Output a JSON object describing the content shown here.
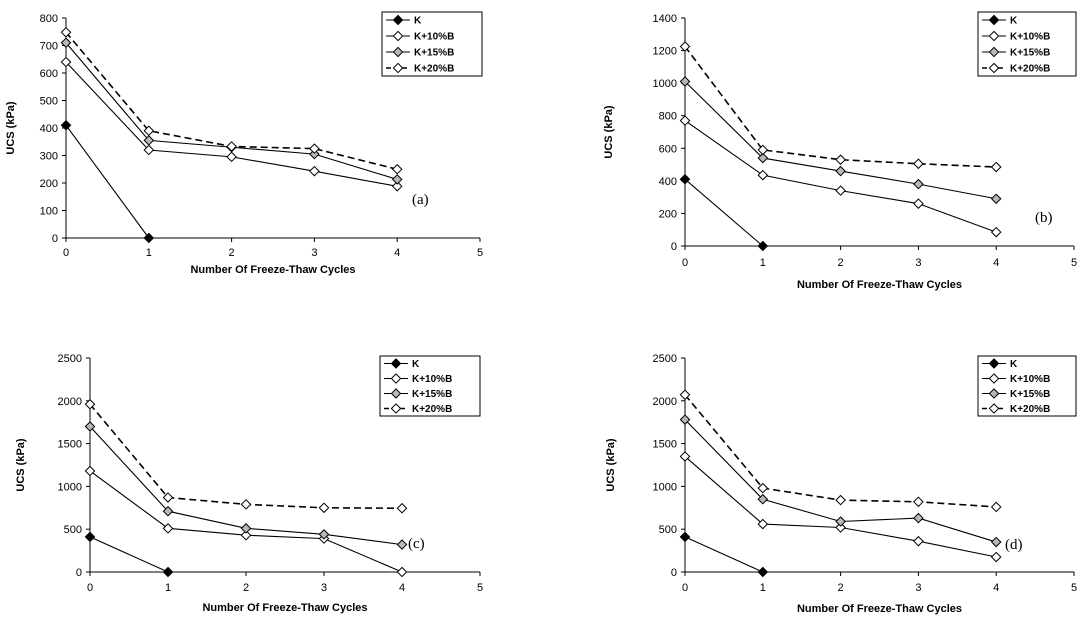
{
  "chart_data": [
    {
      "type": "line",
      "panel_label": "(a)",
      "xlabel": "Number Of Freeze-Thaw Cycles",
      "ylabel": "UCS (kPa)",
      "xlim": [
        0,
        5
      ],
      "ylim": [
        0,
        800
      ],
      "xticks": [
        "0",
        "1",
        "2",
        "3",
        "4",
        "5"
      ],
      "yticks": [
        "0",
        "100",
        "200",
        "300",
        "400",
        "500",
        "600",
        "700",
        "800"
      ],
      "legend_position": "top-right",
      "series": [
        {
          "name": "K",
          "x": [
            0,
            1
          ],
          "values": [
            410,
            0
          ],
          "color": "#000000",
          "marker": "filled-diamond",
          "dash": "solid"
        },
        {
          "name": "K+10%B",
          "x": [
            0,
            1,
            2,
            3,
            4
          ],
          "values": [
            640,
            320,
            295,
            243,
            188
          ],
          "color": "#000000",
          "marker": "open-diamond",
          "dash": "solid"
        },
        {
          "name": "K+15%B",
          "x": [
            0,
            1,
            2,
            3,
            4
          ],
          "values": [
            710,
            355,
            330,
            305,
            213
          ],
          "color": "#000000",
          "marker": "gray-diamond",
          "dash": "solid"
        },
        {
          "name": "K+20%B",
          "x": [
            0,
            1,
            2,
            3,
            4
          ],
          "values": [
            748,
            390,
            333,
            325,
            250
          ],
          "color": "#000000",
          "marker": "open-diamond",
          "dash": "dashed"
        }
      ]
    },
    {
      "type": "line",
      "panel_label": "(b)",
      "xlabel": "Number Of Freeze-Thaw Cycles",
      "ylabel": "UCS (kPa)",
      "xlim": [
        0,
        5
      ],
      "ylim": [
        0,
        1400
      ],
      "xticks": [
        "0",
        "1",
        "2",
        "3",
        "4",
        "5"
      ],
      "yticks": [
        "0",
        "200",
        "400",
        "600",
        "800",
        "1000",
        "1200",
        "1400"
      ],
      "legend_position": "top-right",
      "series": [
        {
          "name": "K",
          "x": [
            0,
            1
          ],
          "values": [
            410,
            0
          ],
          "color": "#000000",
          "marker": "filled-diamond",
          "dash": "solid"
        },
        {
          "name": "K+10%B",
          "x": [
            0,
            1,
            2,
            3,
            4
          ],
          "values": [
            770,
            435,
            340,
            260,
            85
          ],
          "color": "#000000",
          "marker": "open-diamond",
          "dash": "solid"
        },
        {
          "name": "K+15%B",
          "x": [
            0,
            1,
            2,
            3,
            4
          ],
          "values": [
            1010,
            540,
            460,
            380,
            290
          ],
          "color": "#000000",
          "marker": "gray-diamond",
          "dash": "solid"
        },
        {
          "name": "K+20%B",
          "x": [
            0,
            1,
            2,
            3,
            4
          ],
          "values": [
            1225,
            590,
            530,
            505,
            485
          ],
          "color": "#000000",
          "marker": "open-diamond",
          "dash": "dashed"
        }
      ]
    },
    {
      "type": "line",
      "panel_label": "(c)",
      "xlabel": "Number Of Freeze-Thaw Cycles",
      "ylabel": "UCS (kPa)",
      "xlim": [
        0,
        5
      ],
      "ylim": [
        0,
        2500
      ],
      "xticks": [
        "0",
        "1",
        "2",
        "3",
        "4",
        "5"
      ],
      "yticks": [
        "0",
        "500",
        "1000",
        "1500",
        "2000",
        "2500"
      ],
      "legend_position": "top-right",
      "series": [
        {
          "name": "K",
          "x": [
            0,
            1
          ],
          "values": [
            410,
            0
          ],
          "color": "#000000",
          "marker": "filled-diamond",
          "dash": "solid"
        },
        {
          "name": "K+10%B",
          "x": [
            0,
            1,
            2,
            3,
            4
          ],
          "values": [
            1180,
            510,
            430,
            390,
            0
          ],
          "color": "#000000",
          "marker": "open-diamond",
          "dash": "solid"
        },
        {
          "name": "K+15%B",
          "x": [
            0,
            1,
            2,
            3,
            4
          ],
          "values": [
            1700,
            710,
            510,
            440,
            320
          ],
          "color": "#000000",
          "marker": "gray-diamond",
          "dash": "solid"
        },
        {
          "name": "K+20%B",
          "x": [
            0,
            1,
            2,
            3,
            4
          ],
          "values": [
            1960,
            870,
            790,
            750,
            745
          ],
          "color": "#000000",
          "marker": "open-diamond",
          "dash": "dashed"
        }
      ]
    },
    {
      "type": "line",
      "panel_label": "(d)",
      "xlabel": "Number Of Freeze-Thaw Cycles",
      "ylabel": "UCS (kPa)",
      "xlim": [
        0,
        5
      ],
      "ylim": [
        0,
        2500
      ],
      "xticks": [
        "0",
        "1",
        "2",
        "3",
        "4",
        "5"
      ],
      "yticks": [
        "0",
        "500",
        "1000",
        "1500",
        "2000",
        "2500"
      ],
      "legend_position": "top-right",
      "series": [
        {
          "name": "K",
          "x": [
            0,
            1
          ],
          "values": [
            410,
            0
          ],
          "color": "#000000",
          "marker": "filled-diamond",
          "dash": "solid"
        },
        {
          "name": "K+10%B",
          "x": [
            0,
            1,
            2,
            3,
            4
          ],
          "values": [
            1350,
            560,
            520,
            360,
            175
          ],
          "color": "#000000",
          "marker": "open-diamond",
          "dash": "solid"
        },
        {
          "name": "K+15%B",
          "x": [
            0,
            1,
            2,
            3,
            4
          ],
          "values": [
            1780,
            850,
            590,
            630,
            350
          ],
          "color": "#000000",
          "marker": "gray-diamond",
          "dash": "solid"
        },
        {
          "name": "K+20%B",
          "x": [
            0,
            1,
            2,
            3,
            4
          ],
          "values": [
            2070,
            980,
            840,
            820,
            760
          ],
          "color": "#000000",
          "marker": "open-diamond",
          "dash": "dashed"
        }
      ]
    }
  ]
}
